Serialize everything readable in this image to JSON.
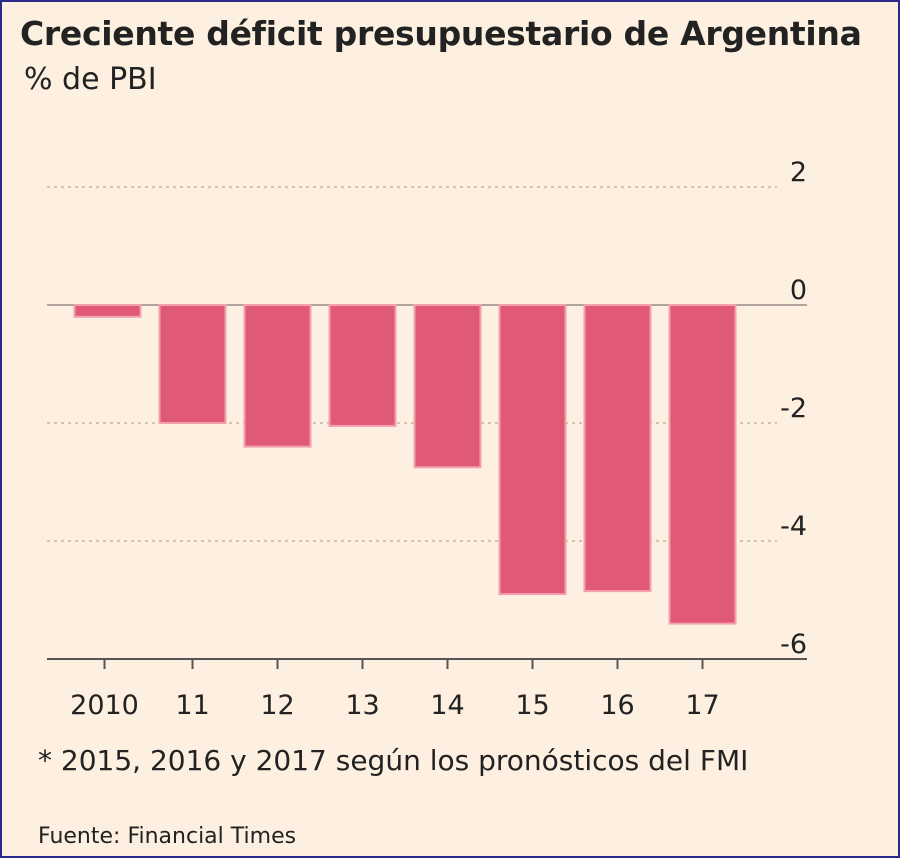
{
  "chart_data": {
    "type": "bar",
    "title": "Creciente déficit presupuestario de Argentina",
    "subtitle": "% de PBI",
    "categories": [
      "2010",
      "11",
      "12",
      "13",
      "14",
      "15",
      "16",
      "17"
    ],
    "values": [
      -0.2,
      -2.0,
      -2.4,
      -2.05,
      -2.75,
      -4.9,
      -4.85,
      -5.4
    ],
    "ylim": [
      -6,
      2
    ],
    "yticks": [
      2,
      0,
      -2,
      -4,
      -6
    ],
    "ytick_labels": [
      "2",
      "0",
      "-2",
      "-4",
      "-6"
    ],
    "grid": true,
    "bar_color": "#e05a76",
    "footnote": "* 2015, 2016 y 2017 según los pronósticos del FMI",
    "source": "Fuente: Financial Times"
  }
}
